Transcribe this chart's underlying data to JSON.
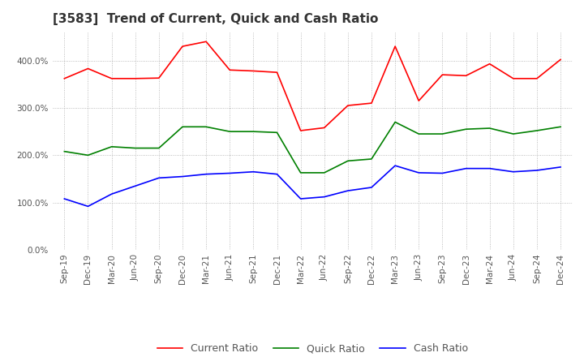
{
  "title": "[3583]  Trend of Current, Quick and Cash Ratio",
  "x_labels": [
    "Sep-19",
    "Dec-19",
    "Mar-20",
    "Jun-20",
    "Sep-20",
    "Dec-20",
    "Mar-21",
    "Jun-21",
    "Sep-21",
    "Dec-21",
    "Mar-22",
    "Jun-22",
    "Sep-22",
    "Dec-22",
    "Mar-23",
    "Jun-23",
    "Sep-23",
    "Dec-23",
    "Mar-24",
    "Jun-24",
    "Sep-24",
    "Dec-24"
  ],
  "current_ratio": [
    362,
    383,
    362,
    362,
    363,
    430,
    440,
    380,
    378,
    375,
    252,
    258,
    305,
    310,
    430,
    315,
    370,
    368,
    393,
    362,
    362,
    402
  ],
  "quick_ratio": [
    208,
    200,
    218,
    215,
    215,
    260,
    260,
    250,
    250,
    248,
    163,
    163,
    188,
    192,
    270,
    245,
    245,
    255,
    257,
    245,
    252,
    260
  ],
  "cash_ratio": [
    108,
    92,
    118,
    135,
    152,
    155,
    160,
    162,
    165,
    160,
    108,
    112,
    125,
    132,
    178,
    163,
    162,
    172,
    172,
    165,
    168,
    175
  ],
  "current_color": "#ff0000",
  "quick_color": "#008000",
  "cash_color": "#0000ff",
  "ylim": [
    0,
    460
  ],
  "yticks": [
    0,
    100,
    200,
    300,
    400
  ],
  "background_color": "#ffffff",
  "grid_color": "#aaaaaa",
  "title_fontsize": 11,
  "tick_fontsize": 7.5,
  "legend_fontsize": 9
}
